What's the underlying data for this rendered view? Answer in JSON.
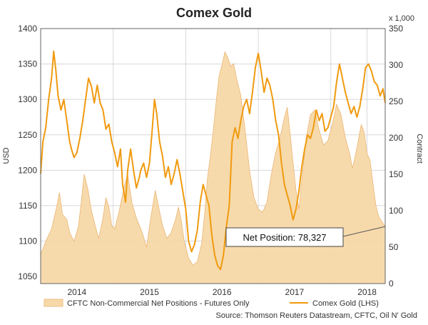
{
  "chart_data": {
    "type": "line",
    "title": "Comex Gold",
    "left_axis": {
      "label": "USD",
      "ylim": [
        1040,
        1400
      ],
      "ticks": [
        1050,
        1100,
        1150,
        1200,
        1250,
        1300,
        1350,
        1400
      ]
    },
    "right_axis": {
      "label": "Contract",
      "multiplier_label": "x 1,000",
      "ylim": [
        0,
        350
      ],
      "ticks": [
        0,
        50,
        100,
        150,
        200,
        250,
        300,
        350
      ]
    },
    "x_axis": {
      "range": [
        2013.5,
        2018.25
      ],
      "tick_labels": [
        "2014",
        "2015",
        "2016",
        "2017",
        "2018"
      ],
      "tick_positions": [
        2014.0,
        2015.0,
        2016.0,
        2017.0,
        2018.0
      ],
      "year_boundaries": [
        2013.5,
        2014.5,
        2015.5,
        2016.5,
        2017.5,
        2018.0
      ]
    },
    "grid": true,
    "series": [
      {
        "name": "CFTC Non-Commercial Net Positions - Futures Only",
        "axis": "right",
        "style": "area",
        "color": "#f7d8a8",
        "points": [
          [
            2013.5,
            40
          ],
          [
            2013.58,
            60
          ],
          [
            2013.65,
            75
          ],
          [
            2013.72,
            105
          ],
          [
            2013.76,
            125
          ],
          [
            2013.8,
            95
          ],
          [
            2013.86,
            88
          ],
          [
            2013.9,
            70
          ],
          [
            2013.96,
            58
          ],
          [
            2014.02,
            78
          ],
          [
            2014.06,
            112
          ],
          [
            2014.1,
            150
          ],
          [
            2014.15,
            130
          ],
          [
            2014.2,
            100
          ],
          [
            2014.25,
            80
          ],
          [
            2014.3,
            62
          ],
          [
            2014.36,
            90
          ],
          [
            2014.4,
            118
          ],
          [
            2014.44,
            105
          ],
          [
            2014.48,
            80
          ],
          [
            2014.52,
            75
          ],
          [
            2014.58,
            98
          ],
          [
            2014.65,
            132
          ],
          [
            2014.7,
            150
          ],
          [
            2014.76,
            110
          ],
          [
            2014.82,
            90
          ],
          [
            2014.9,
            70
          ],
          [
            2014.96,
            50
          ],
          [
            2015.02,
            92
          ],
          [
            2015.08,
            128
          ],
          [
            2015.12,
            108
          ],
          [
            2015.18,
            80
          ],
          [
            2015.24,
            62
          ],
          [
            2015.3,
            70
          ],
          [
            2015.36,
            88
          ],
          [
            2015.4,
            105
          ],
          [
            2015.44,
            85
          ],
          [
            2015.48,
            58
          ],
          [
            2015.54,
            35
          ],
          [
            2015.6,
            25
          ],
          [
            2015.66,
            30
          ],
          [
            2015.72,
            55
          ],
          [
            2015.76,
            95
          ],
          [
            2015.8,
            145
          ],
          [
            2015.84,
            175
          ],
          [
            2015.88,
            210
          ],
          [
            2015.92,
            250
          ],
          [
            2015.96,
            285
          ],
          [
            2016.0,
            300
          ],
          [
            2016.04,
            318
          ],
          [
            2016.08,
            310
          ],
          [
            2016.12,
            298
          ],
          [
            2016.16,
            302
          ],
          [
            2016.2,
            282
          ],
          [
            2016.26,
            258
          ],
          [
            2016.32,
            210
          ],
          [
            2016.38,
            155
          ],
          [
            2016.44,
            118
          ],
          [
            2016.5,
            102
          ],
          [
            2016.56,
            98
          ],
          [
            2016.62,
            112
          ],
          [
            2016.68,
            150
          ],
          [
            2016.74,
            180
          ],
          [
            2016.8,
            200
          ],
          [
            2016.86,
            228
          ],
          [
            2016.9,
            242
          ],
          [
            2016.94,
            205
          ],
          [
            2016.98,
            165
          ],
          [
            2017.02,
            128
          ],
          [
            2017.06,
            102
          ],
          [
            2017.1,
            142
          ],
          [
            2017.16,
            200
          ],
          [
            2017.22,
            232
          ],
          [
            2017.28,
            238
          ],
          [
            2017.34,
            210
          ],
          [
            2017.4,
            190
          ],
          [
            2017.46,
            196
          ],
          [
            2017.52,
            218
          ],
          [
            2017.58,
            246
          ],
          [
            2017.64,
            232
          ],
          [
            2017.7,
            200
          ],
          [
            2017.76,
            178
          ],
          [
            2017.8,
            158
          ],
          [
            2017.86,
            186
          ],
          [
            2017.92,
            218
          ],
          [
            2017.96,
            208
          ],
          [
            2018.0,
            178
          ],
          [
            2018.04,
            170
          ],
          [
            2018.08,
            138
          ],
          [
            2018.12,
            108
          ],
          [
            2018.16,
            92
          ],
          [
            2018.2,
            86
          ],
          [
            2018.25,
            78
          ]
        ]
      },
      {
        "name": "Comex Gold (LHS)",
        "axis": "left",
        "style": "line",
        "color": "#f09a0e",
        "points": [
          [
            2013.5,
            1195
          ],
          [
            2013.53,
            1240
          ],
          [
            2013.57,
            1260
          ],
          [
            2013.61,
            1300
          ],
          [
            2013.65,
            1330
          ],
          [
            2013.68,
            1368
          ],
          [
            2013.71,
            1340
          ],
          [
            2013.74,
            1305
          ],
          [
            2013.78,
            1285
          ],
          [
            2013.82,
            1300
          ],
          [
            2013.86,
            1270
          ],
          [
            2013.9,
            1240
          ],
          [
            2013.93,
            1228
          ],
          [
            2013.96,
            1218
          ],
          [
            2014.0,
            1225
          ],
          [
            2014.04,
            1245
          ],
          [
            2014.08,
            1270
          ],
          [
            2014.12,
            1300
          ],
          [
            2014.16,
            1330
          ],
          [
            2014.2,
            1318
          ],
          [
            2014.24,
            1295
          ],
          [
            2014.28,
            1320
          ],
          [
            2014.32,
            1295
          ],
          [
            2014.36,
            1285
          ],
          [
            2014.4,
            1258
          ],
          [
            2014.44,
            1265
          ],
          [
            2014.48,
            1240
          ],
          [
            2014.52,
            1225
          ],
          [
            2014.56,
            1205
          ],
          [
            2014.6,
            1230
          ],
          [
            2014.63,
            1180
          ],
          [
            2014.67,
            1155
          ],
          [
            2014.7,
            1200
          ],
          [
            2014.74,
            1230
          ],
          [
            2014.78,
            1200
          ],
          [
            2014.82,
            1175
          ],
          [
            2014.86,
            1190
          ],
          [
            2014.88,
            1200
          ],
          [
            2014.92,
            1210
          ],
          [
            2014.96,
            1190
          ],
          [
            2015.0,
            1210
          ],
          [
            2015.04,
            1260
          ],
          [
            2015.07,
            1300
          ],
          [
            2015.1,
            1280
          ],
          [
            2015.14,
            1240
          ],
          [
            2015.18,
            1220
          ],
          [
            2015.22,
            1190
          ],
          [
            2015.26,
            1205
          ],
          [
            2015.3,
            1180
          ],
          [
            2015.34,
            1195
          ],
          [
            2015.38,
            1215
          ],
          [
            2015.42,
            1195
          ],
          [
            2015.46,
            1170
          ],
          [
            2015.5,
            1145
          ],
          [
            2015.54,
            1100
          ],
          [
            2015.58,
            1085
          ],
          [
            2015.62,
            1095
          ],
          [
            2015.66,
            1115
          ],
          [
            2015.7,
            1155
          ],
          [
            2015.74,
            1180
          ],
          [
            2015.78,
            1165
          ],
          [
            2015.82,
            1150
          ],
          [
            2015.86,
            1108
          ],
          [
            2015.9,
            1080
          ],
          [
            2015.94,
            1065
          ],
          [
            2015.98,
            1060
          ],
          [
            2016.02,
            1080
          ],
          [
            2016.06,
            1120
          ],
          [
            2016.1,
            1150
          ],
          [
            2016.14,
            1240
          ],
          [
            2016.18,
            1260
          ],
          [
            2016.22,
            1245
          ],
          [
            2016.26,
            1270
          ],
          [
            2016.3,
            1290
          ],
          [
            2016.34,
            1300
          ],
          [
            2016.38,
            1280
          ],
          [
            2016.42,
            1310
          ],
          [
            2016.46,
            1345
          ],
          [
            2016.5,
            1365
          ],
          [
            2016.54,
            1340
          ],
          [
            2016.58,
            1310
          ],
          [
            2016.62,
            1330
          ],
          [
            2016.66,
            1320
          ],
          [
            2016.7,
            1300
          ],
          [
            2016.74,
            1270
          ],
          [
            2016.78,
            1250
          ],
          [
            2016.82,
            1210
          ],
          [
            2016.86,
            1180
          ],
          [
            2016.9,
            1165
          ],
          [
            2016.94,
            1150
          ],
          [
            2016.98,
            1130
          ],
          [
            2017.02,
            1145
          ],
          [
            2017.06,
            1170
          ],
          [
            2017.1,
            1205
          ],
          [
            2017.14,
            1230
          ],
          [
            2017.18,
            1250
          ],
          [
            2017.22,
            1245
          ],
          [
            2017.26,
            1260
          ],
          [
            2017.3,
            1285
          ],
          [
            2017.34,
            1270
          ],
          [
            2017.38,
            1280
          ],
          [
            2017.42,
            1255
          ],
          [
            2017.46,
            1260
          ],
          [
            2017.5,
            1275
          ],
          [
            2017.54,
            1290
          ],
          [
            2017.58,
            1325
          ],
          [
            2017.62,
            1350
          ],
          [
            2017.66,
            1330
          ],
          [
            2017.7,
            1310
          ],
          [
            2017.74,
            1295
          ],
          [
            2017.78,
            1280
          ],
          [
            2017.82,
            1290
          ],
          [
            2017.86,
            1275
          ],
          [
            2017.9,
            1290
          ],
          [
            2017.94,
            1315
          ],
          [
            2017.98,
            1345
          ],
          [
            2018.02,
            1350
          ],
          [
            2018.06,
            1340
          ],
          [
            2018.1,
            1325
          ],
          [
            2018.14,
            1320
          ],
          [
            2018.18,
            1305
          ],
          [
            2018.22,
            1315
          ],
          [
            2018.25,
            1295
          ]
        ]
      }
    ],
    "annotation": {
      "text": "Net Position: 78,327",
      "target_x": 2018.25,
      "target_y_right": 78.327
    },
    "legend": [
      "CFTC Non-Commercial Net Positions - Futures Only",
      "Comex Gold (LHS)"
    ],
    "legend_position": "bottom",
    "source": "Source: Thomson Reuters Datastream, CFTC, Oil N' Gold"
  }
}
